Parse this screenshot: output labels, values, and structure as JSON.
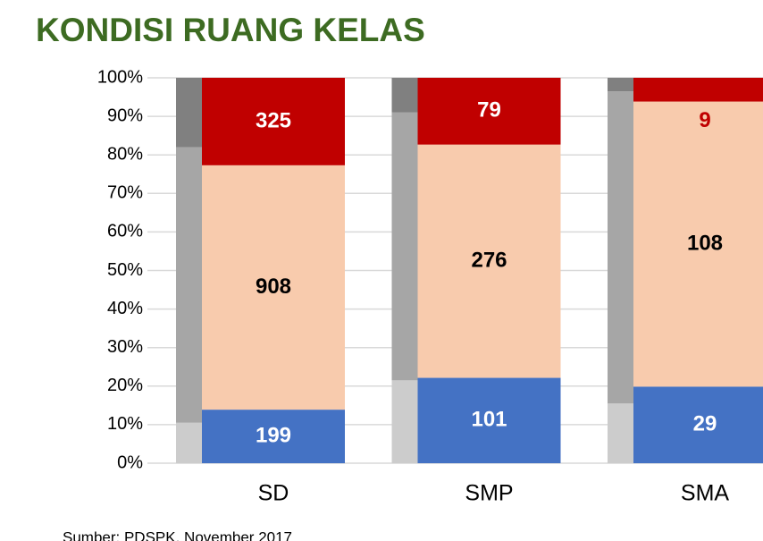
{
  "chart_data": {
    "type": "bar",
    "title": "KONDISI RUANG KELAS",
    "source": "Sumber: PDSPK, November 2017",
    "stacked": "percent",
    "categories": [
      "SD",
      "SMP",
      "SMA"
    ],
    "series": [
      {
        "color": "#4472c4",
        "label_color": "#ffffff",
        "values": [
          199,
          101,
          29
        ]
      },
      {
        "color": "#f8cbad",
        "label_color": "#000000",
        "values": [
          908,
          276,
          108
        ]
      },
      {
        "color": "#c00000",
        "label_color": "#ffffff",
        "small_label_color": "#c00000",
        "values": [
          325,
          79,
          9
        ]
      }
    ],
    "shadow_series": [
      {
        "color": "#cccccc",
        "values": [
          10.5,
          21.5,
          15.5
        ]
      },
      {
        "color": "#a6a6a6",
        "values": [
          71.5,
          69.5,
          81
        ]
      },
      {
        "color": "#808080",
        "values": [
          18,
          9,
          3.5
        ]
      }
    ],
    "ylim": [
      0,
      100
    ],
    "yticks": [
      {
        "value": 0,
        "label": "0%"
      },
      {
        "value": 10,
        "label": "10%"
      },
      {
        "value": 20,
        "label": "20%"
      },
      {
        "value": 30,
        "label": "30%"
      },
      {
        "value": 40,
        "label": "40%"
      },
      {
        "value": 50,
        "label": "50%"
      },
      {
        "value": 60,
        "label": "60%"
      },
      {
        "value": 70,
        "label": "70%"
      },
      {
        "value": 80,
        "label": "80%"
      },
      {
        "value": 90,
        "label": "90%"
      },
      {
        "value": 100,
        "label": "100%"
      }
    ],
    "grid": true
  }
}
